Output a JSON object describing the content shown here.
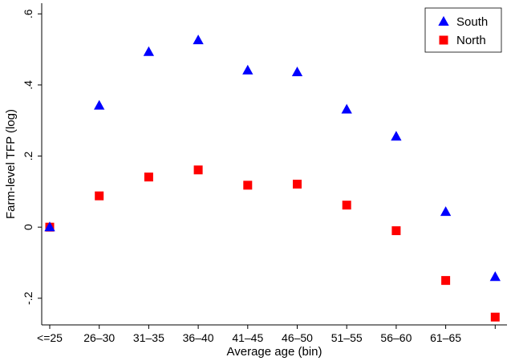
{
  "chart_data": {
    "type": "scatter",
    "xlabel": "Average age (bin)",
    "ylabel": "Farm-level TFP (log)",
    "categories": [
      "<=25",
      "26–30",
      "31–35",
      "36–40",
      "41–45",
      "46–50",
      "51–55",
      "56–60",
      "61–65",
      ""
    ],
    "yticks": [
      -0.2,
      0,
      0.2,
      0.4,
      0.6
    ],
    "ytick_labels": [
      "-.2",
      "0",
      ".2",
      ".4",
      ".6"
    ],
    "ylim": [
      -0.275,
      0.63
    ],
    "grid": false,
    "legend_position": "top-right",
    "series": [
      {
        "name": "South",
        "marker": "triangle",
        "color": "#0000ff",
        "values": [
          0.0,
          0.342,
          0.493,
          0.526,
          0.441,
          0.436,
          0.331,
          0.255,
          0.043,
          -0.14
        ]
      },
      {
        "name": "North",
        "marker": "square",
        "color": "#ff0000",
        "values": [
          0.0,
          0.088,
          0.141,
          0.161,
          0.118,
          0.121,
          0.062,
          -0.01,
          -0.15,
          -0.253
        ]
      }
    ]
  }
}
